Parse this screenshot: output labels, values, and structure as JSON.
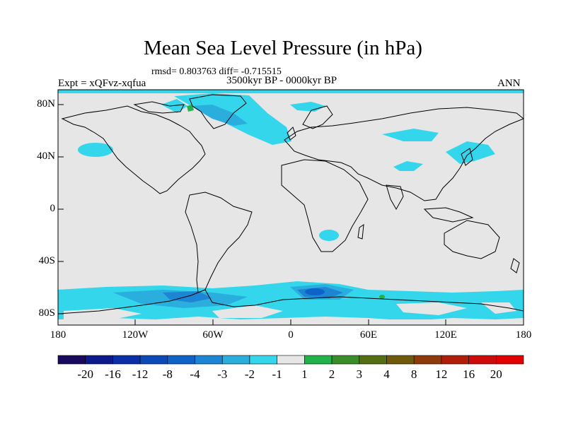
{
  "title": "Mean Sea Level Pressure (in hPa)",
  "stats": "rmsd= 0.803763 diff= -0.715515",
  "experiment": "Expt = xQFvz-xqfua",
  "period": "3500kyr BP - 0000kyr BP",
  "season": "ANN",
  "axes": {
    "lat_labels": [
      "80N",
      "40N",
      "0",
      "40S",
      "80S"
    ],
    "lon_labels": [
      "180",
      "120W",
      "60W",
      "0",
      "60E",
      "120E",
      "180"
    ]
  },
  "colorbar": {
    "labels": [
      "-20",
      "-16",
      "-12",
      "-8",
      "-4",
      "-3",
      "-2",
      "-1",
      "1",
      "2",
      "3",
      "4",
      "8",
      "12",
      "16",
      "20"
    ],
    "colors": [
      "#1a0a5e",
      "#0c1a8c",
      "#0a2fa8",
      "#0b48b8",
      "#0e62c8",
      "#1c86d4",
      "#2aaedd",
      "#33d6ea",
      "#e6e6e6",
      "#21b24a",
      "#3a8e2a",
      "#546e12",
      "#6e5a0a",
      "#8e3a0a",
      "#b01e0a",
      "#cc0b0b",
      "#e00000"
    ]
  },
  "map_colors": {
    "background": "#e6e6e6",
    "land_outline": "#000000",
    "level_minus1": "#33d6ea",
    "level_minus2": "#2aaedd",
    "level_minus3": "#1c86d4",
    "level_minus4": "#0e62c8",
    "level_plus1": "#21b24a"
  }
}
